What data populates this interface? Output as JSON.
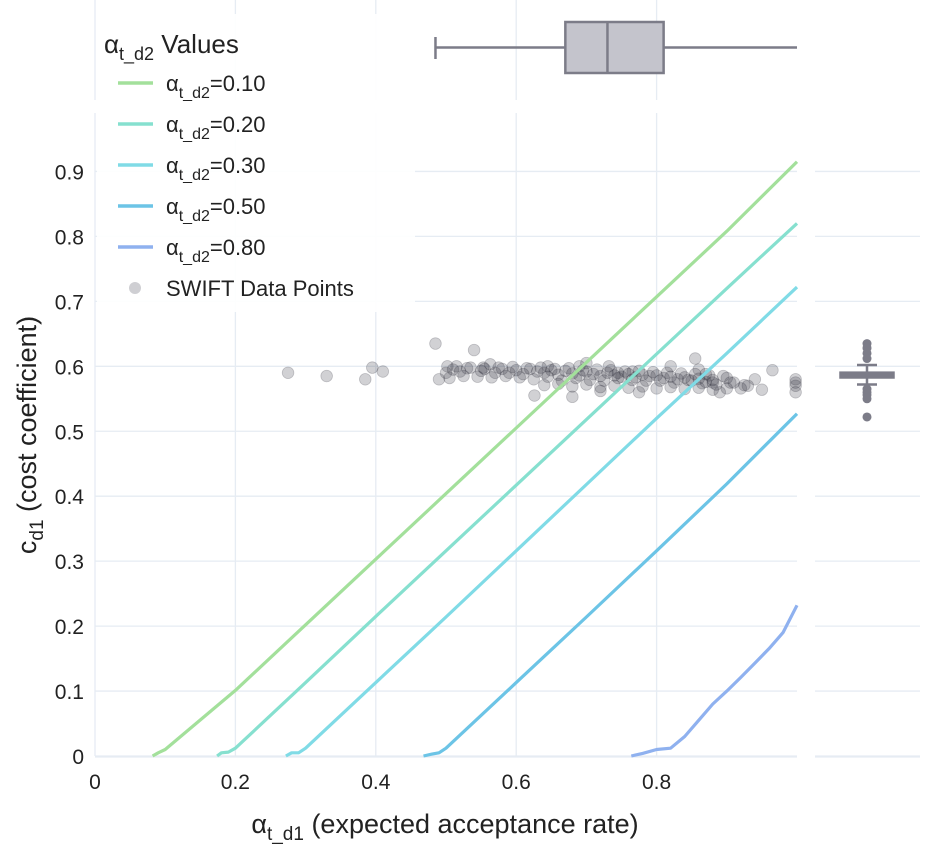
{
  "chart_data": {
    "type": "line",
    "xlabel": {
      "main": "α",
      "sub": "t_d1",
      "rest": " (expected acceptance rate)"
    },
    "ylabel": {
      "main": "c",
      "sub": "d1",
      "rest": " (cost coefficient)"
    },
    "xlim": [
      0,
      1.0
    ],
    "ylim": [
      0,
      0.99
    ],
    "x_ticks": [
      0,
      0.2,
      0.4,
      0.6,
      0.8
    ],
    "x_tick_labels": [
      "0",
      "0.2",
      "0.4",
      "0.6",
      "0.8"
    ],
    "y_ticks": [
      0,
      0.1,
      0.2,
      0.3,
      0.4,
      0.5,
      0.6,
      0.7,
      0.8,
      0.9
    ],
    "y_tick_labels": [
      "0",
      "0.1",
      "0.2",
      "0.3",
      "0.4",
      "0.5",
      "0.6",
      "0.7",
      "0.8",
      "0.9"
    ],
    "grid": true,
    "legend": {
      "title_main": "α",
      "title_sub": "t_d2",
      "title_rest": " Values",
      "placement": "top-left"
    },
    "series": [
      {
        "name_main": "α",
        "name_sub": "t_d2",
        "name_rest": "=0.10",
        "color": "#a3e09b",
        "x": [
          0.082,
          0.09,
          0.1,
          0.2,
          0.3,
          0.4,
          0.5,
          0.6,
          0.7,
          0.8,
          0.9,
          1.0
        ],
        "y": [
          0.0,
          0.005,
          0.01,
          0.101,
          0.202,
          0.303,
          0.404,
          0.505,
          0.606,
          0.707,
          0.808,
          0.915
        ]
      },
      {
        "name_main": "α",
        "name_sub": "t_d2",
        "name_rest": "=0.20",
        "color": "#86e0cf",
        "x": [
          0.174,
          0.18,
          0.19,
          0.2,
          0.3,
          0.4,
          0.5,
          0.6,
          0.7,
          0.8,
          0.9,
          1.0
        ],
        "y": [
          0.0,
          0.005,
          0.006,
          0.012,
          0.113,
          0.215,
          0.316,
          0.417,
          0.518,
          0.619,
          0.72,
          0.82
        ]
      },
      {
        "name_main": "α",
        "name_sub": "t_d2",
        "name_rest": "=0.30",
        "color": "#80dbe6",
        "x": [
          0.272,
          0.28,
          0.29,
          0.3,
          0.4,
          0.5,
          0.6,
          0.7,
          0.8,
          0.9,
          1.0
        ],
        "y": [
          0.0,
          0.005,
          0.005,
          0.012,
          0.113,
          0.214,
          0.316,
          0.418,
          0.52,
          0.62,
          0.722
        ]
      },
      {
        "name_main": "α",
        "name_sub": "t_d2",
        "name_rest": "=0.50",
        "color": "#6cc4e6",
        "x": [
          0.468,
          0.48,
          0.49,
          0.5,
          0.6,
          0.7,
          0.8,
          0.9,
          1.0
        ],
        "y": [
          0.0,
          0.003,
          0.005,
          0.012,
          0.113,
          0.214,
          0.316,
          0.419,
          0.527
        ]
      },
      {
        "name_main": "α",
        "name_sub": "t_d2",
        "name_rest": "=0.80",
        "color": "#8fb1ef",
        "x": [
          0.764,
          0.78,
          0.8,
          0.82,
          0.84,
          0.86,
          0.88,
          0.9,
          0.92,
          0.94,
          0.96,
          0.98,
          1.0
        ],
        "y": [
          0.0,
          0.004,
          0.01,
          0.012,
          0.03,
          0.055,
          0.08,
          0.1,
          0.121,
          0.143,
          0.165,
          0.19,
          0.232
        ]
      }
    ],
    "scatter": {
      "name": "SWIFT Data Points",
      "color": "#2e2e3c",
      "x": [
        0.275,
        0.33,
        0.385,
        0.395,
        0.41,
        0.485,
        0.49,
        0.502,
        0.54,
        0.553,
        0.563,
        0.59,
        0.626,
        0.645,
        0.68,
        0.69,
        0.7,
        0.72,
        0.732,
        0.745,
        0.766,
        0.775,
        0.82,
        0.855,
        0.86,
        0.87,
        0.88,
        0.89,
        0.9,
        0.91,
        0.92,
        0.93,
        0.94,
        0.95,
        0.965,
        0.998,
        0.5,
        0.51,
        0.52,
        0.53,
        0.55,
        0.57,
        0.58,
        0.6,
        0.61,
        0.62,
        0.63,
        0.64,
        0.65,
        0.66,
        0.67,
        0.68,
        0.69,
        0.7,
        0.71,
        0.72,
        0.73,
        0.74,
        0.75,
        0.76,
        0.77,
        0.78,
        0.79,
        0.8,
        0.81,
        0.82,
        0.83,
        0.84,
        0.85,
        0.86,
        0.87,
        0.88,
        0.505,
        0.525,
        0.545,
        0.565,
        0.585,
        0.605,
        0.625,
        0.645,
        0.665,
        0.685,
        0.705,
        0.725,
        0.745,
        0.765,
        0.785,
        0.805,
        0.825,
        0.845,
        0.865,
        0.885,
        0.905,
        0.925,
        0.515,
        0.535,
        0.555,
        0.575,
        0.595,
        0.615,
        0.635,
        0.655,
        0.675,
        0.695,
        0.715,
        0.735,
        0.755,
        0.775,
        0.795,
        0.815,
        0.835,
        0.855,
        0.875,
        0.895,
        0.64,
        0.66,
        0.68,
        0.7,
        0.72,
        0.74,
        0.76,
        0.78,
        0.8,
        0.82,
        0.84,
        0.86,
        0.88,
        0.9,
        0.998,
        0.998,
        0.998
      ],
      "y": [
        0.59,
        0.585,
        0.58,
        0.598,
        0.592,
        0.635,
        0.58,
        0.6,
        0.625,
        0.598,
        0.603,
        0.59,
        0.555,
        0.6,
        0.553,
        0.6,
        0.605,
        0.562,
        0.6,
        0.59,
        0.592,
        0.56,
        0.6,
        0.612,
        0.595,
        0.588,
        0.575,
        0.56,
        0.582,
        0.575,
        0.566,
        0.57,
        0.58,
        0.564,
        0.594,
        0.575,
        0.59,
        0.595,
        0.592,
        0.597,
        0.593,
        0.59,
        0.596,
        0.594,
        0.588,
        0.596,
        0.592,
        0.59,
        0.594,
        0.587,
        0.593,
        0.589,
        0.586,
        0.592,
        0.588,
        0.585,
        0.59,
        0.586,
        0.584,
        0.588,
        0.583,
        0.587,
        0.585,
        0.586,
        0.582,
        0.584,
        0.58,
        0.583,
        0.578,
        0.581,
        0.576,
        0.579,
        0.582,
        0.585,
        0.584,
        0.583,
        0.585,
        0.583,
        0.58,
        0.584,
        0.578,
        0.582,
        0.579,
        0.578,
        0.582,
        0.579,
        0.578,
        0.578,
        0.575,
        0.579,
        0.574,
        0.572,
        0.575,
        0.571,
        0.6,
        0.598,
        0.596,
        0.598,
        0.599,
        0.597,
        0.598,
        0.596,
        0.597,
        0.594,
        0.595,
        0.594,
        0.592,
        0.593,
        0.591,
        0.59,
        0.589,
        0.588,
        0.586,
        0.585,
        0.571,
        0.573,
        0.569,
        0.572,
        0.568,
        0.57,
        0.567,
        0.569,
        0.566,
        0.568,
        0.565,
        0.567,
        0.564,
        0.566,
        0.56,
        0.57,
        0.58
      ]
    },
    "marginal_x_box": {
      "whisker_low": 0.485,
      "q1": 0.67,
      "median": 0.73,
      "q3": 0.81,
      "whisker_high": 1.0,
      "color": "#7c7c88"
    },
    "marginal_y_box": {
      "whisker_low": 0.572,
      "q1": 0.582,
      "median": 0.587,
      "q3": 0.591,
      "whisker_high": 0.602,
      "outliers": [
        0.635,
        0.628,
        0.62,
        0.612,
        0.565,
        0.56,
        0.556,
        0.55,
        0.522
      ],
      "color": "#7c7c88"
    }
  }
}
